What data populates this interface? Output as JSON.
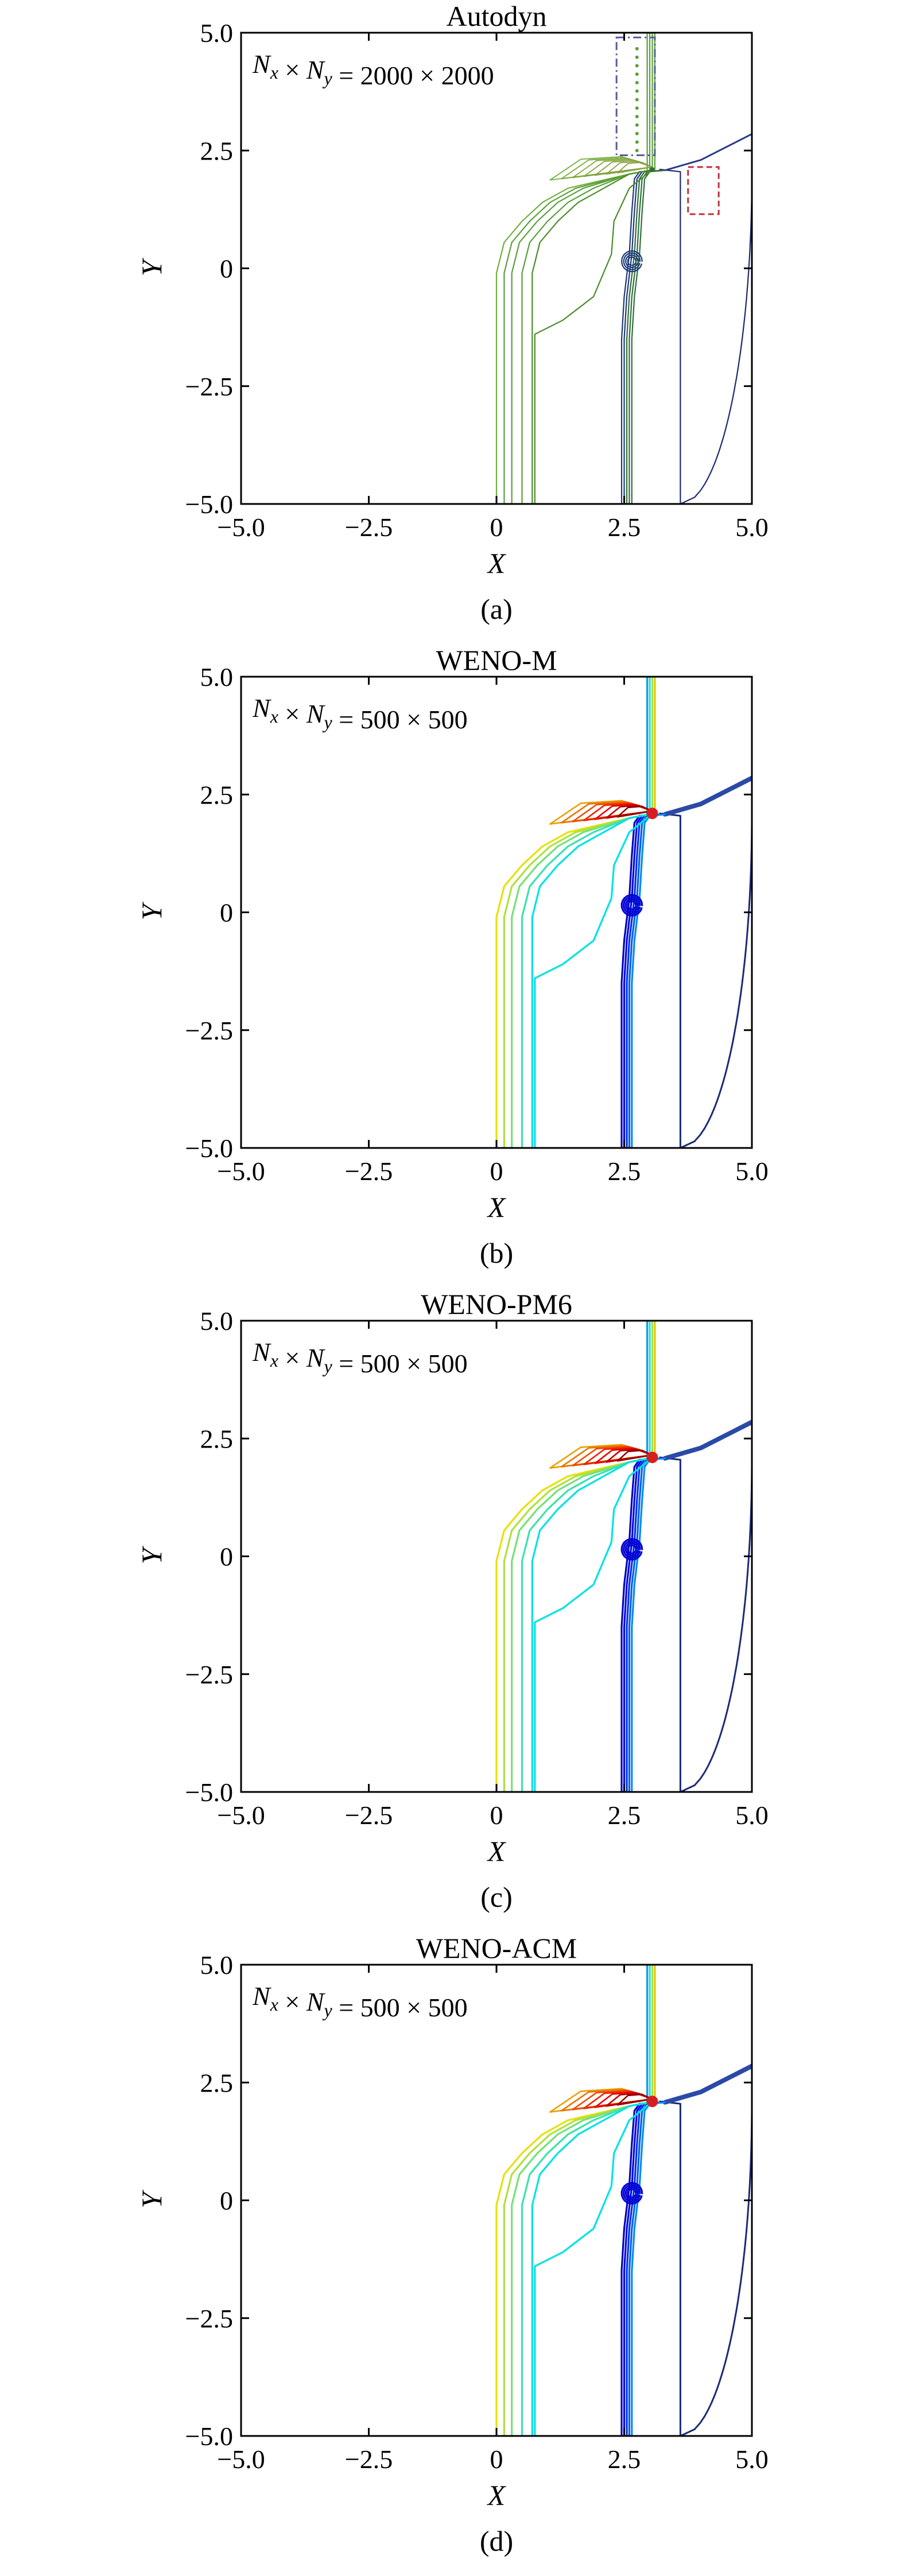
{
  "chart_data": [
    {
      "type": "contour",
      "title": "Autodyn",
      "annotation": "N_x × N_y = 2000 × 2000",
      "xlabel": "X",
      "ylabel": "Y",
      "xlim": [
        -5.0,
        5.0
      ],
      "ylim": [
        -5.0,
        5.0
      ],
      "xticks": [
        "−5.0",
        "−2.5",
        "0",
        "2.5",
        "5.0"
      ],
      "yticks": [
        "5.0",
        "2.5",
        "0",
        "−2.5",
        "−5.0"
      ],
      "caption": "(a)",
      "highlight_boxes": [
        {
          "style": "dash-dot",
          "color": "#5a5a9a",
          "x": [
            2.35,
            3.1
          ],
          "y": [
            2.4,
            4.9
          ]
        },
        {
          "style": "dashed",
          "color": "#c0303a",
          "x": [
            3.75,
            4.35
          ],
          "y": [
            1.15,
            2.15
          ]
        }
      ],
      "colormap": "green-monochrome"
    },
    {
      "type": "contour",
      "title": "WENO-M",
      "annotation": "N_x × N_y = 500 × 500",
      "xlabel": "X",
      "ylabel": "Y",
      "xlim": [
        -5.0,
        5.0
      ],
      "ylim": [
        -5.0,
        5.0
      ],
      "xticks": [
        "−5.0",
        "−2.5",
        "0",
        "2.5",
        "5.0"
      ],
      "yticks": [
        "5.0",
        "2.5",
        "0",
        "−2.5",
        "−5.0"
      ],
      "caption": "(b)",
      "colormap": "jet"
    },
    {
      "type": "contour",
      "title": "WENO-PM6",
      "annotation": "N_x × N_y = 500 × 500",
      "xlabel": "X",
      "ylabel": "Y",
      "xlim": [
        -5.0,
        5.0
      ],
      "ylim": [
        -5.0,
        5.0
      ],
      "xticks": [
        "−5.0",
        "−2.5",
        "0",
        "2.5",
        "5.0"
      ],
      "yticks": [
        "5.0",
        "2.5",
        "0",
        "−2.5",
        "−5.0"
      ],
      "caption": "(c)",
      "colormap": "jet"
    },
    {
      "type": "contour",
      "title": "WENO-ACM",
      "annotation": "N_x × N_y = 500 × 500",
      "xlabel": "X",
      "ylabel": "Y",
      "xlim": [
        -5.0,
        5.0
      ],
      "ylim": [
        -5.0,
        5.0
      ],
      "xticks": [
        "−5.0",
        "−2.5",
        "0",
        "2.5",
        "5.0"
      ],
      "yticks": [
        "5.0",
        "2.5",
        "0",
        "−2.5",
        "−5.0"
      ],
      "caption": "(d)",
      "colormap": "jet"
    }
  ]
}
